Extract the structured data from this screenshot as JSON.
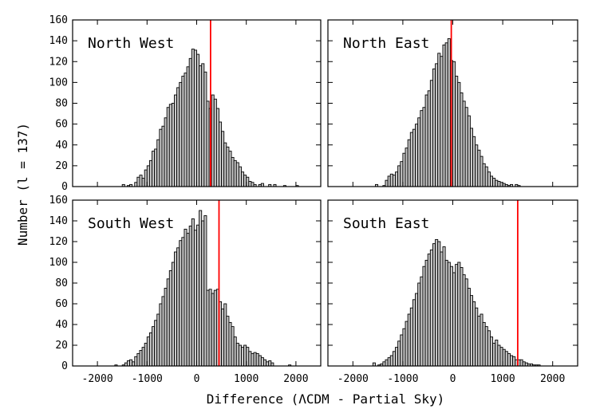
{
  "chart_data": {
    "type": "bar",
    "layout": "2x2 grid of histograms",
    "xlabel": "Difference (ΛCDM - Partial Sky)",
    "ylabel": "Number (l = 137)",
    "xlim": [
      -2500,
      2500
    ],
    "ylim": [
      0,
      160
    ],
    "xticks": [
      -2000,
      -1000,
      0,
      1000,
      2000
    ],
    "xtick_labels": [
      "-2000",
      "-1000",
      "0",
      "1000",
      "2000"
    ],
    "yticks": [
      0,
      20,
      40,
      60,
      80,
      100,
      120,
      140,
      160
    ],
    "ytick_labels": [
      "0",
      "20",
      "40",
      "60",
      "80",
      "100",
      "120",
      "140",
      "160"
    ],
    "bin_width": 50,
    "colors": {
      "bar_fill": "#c8c8c8",
      "bar_edge": "#000000",
      "marker_line": "#ff0000"
    },
    "panels": [
      {
        "title": "North West",
        "marker": 280,
        "bin_centers": [
          -1475,
          -1375,
          -1325,
          -1225,
          -1175,
          -1125,
          -1075,
          -1025,
          -975,
          -925,
          -875,
          -825,
          -775,
          -725,
          -675,
          -625,
          -575,
          -525,
          -475,
          -425,
          -375,
          -325,
          -275,
          -225,
          -175,
          -125,
          -75,
          -25,
          25,
          75,
          125,
          175,
          225,
          275,
          325,
          375,
          425,
          475,
          525,
          575,
          625,
          675,
          725,
          775,
          825,
          875,
          925,
          975,
          1025,
          1075,
          1125,
          1175,
          1275,
          1325,
          1475,
          1575,
          1775,
          2025
        ],
        "counts": [
          2,
          1,
          2,
          4,
          9,
          11,
          8,
          16,
          20,
          25,
          34,
          36,
          45,
          55,
          58,
          66,
          76,
          79,
          80,
          88,
          95,
          100,
          106,
          109,
          115,
          123,
          132,
          131,
          127,
          116,
          118,
          110,
          82,
          75,
          88,
          84,
          75,
          62,
          53,
          42,
          38,
          34,
          28,
          25,
          23,
          19,
          14,
          11,
          9,
          5,
          4,
          2,
          2,
          3,
          2,
          2,
          1,
          1
        ]
      },
      {
        "title": "North East",
        "marker": -30,
        "bin_centers": [
          -1525,
          -1375,
          -1325,
          -1275,
          -1225,
          -1175,
          -1125,
          -1075,
          -1025,
          -975,
          -925,
          -875,
          -825,
          -775,
          -725,
          -675,
          -625,
          -575,
          -525,
          -475,
          -425,
          -375,
          -325,
          -275,
          -225,
          -175,
          -125,
          -75,
          -25,
          25,
          75,
          125,
          175,
          225,
          275,
          325,
          375,
          425,
          475,
          525,
          575,
          625,
          675,
          725,
          775,
          825,
          875,
          925,
          975,
          1025,
          1075,
          1125,
          1175,
          1275,
          1325
        ],
        "counts": [
          2,
          1,
          6,
          10,
          12,
          11,
          14,
          20,
          24,
          32,
          37,
          45,
          52,
          55,
          60,
          66,
          73,
          76,
          88,
          92,
          102,
          113,
          118,
          128,
          125,
          136,
          138,
          142,
          121,
          120,
          106,
          100,
          90,
          82,
          76,
          68,
          56,
          48,
          40,
          35,
          29,
          22,
          19,
          14,
          10,
          8,
          6,
          5,
          4,
          3,
          2,
          1,
          2,
          2,
          1
        ]
      },
      {
        "title": "South West",
        "marker": 450,
        "bin_centers": [
          -1625,
          -1475,
          -1425,
          -1375,
          -1325,
          -1275,
          -1225,
          -1175,
          -1125,
          -1075,
          -1025,
          -975,
          -925,
          -875,
          -825,
          -775,
          -725,
          -675,
          -625,
          -575,
          -525,
          -475,
          -425,
          -375,
          -325,
          -275,
          -225,
          -175,
          -125,
          -75,
          -25,
          25,
          75,
          125,
          175,
          225,
          275,
          325,
          375,
          425,
          475,
          525,
          575,
          625,
          675,
          725,
          775,
          825,
          875,
          925,
          975,
          1025,
          1075,
          1125,
          1175,
          1225,
          1275,
          1325,
          1375,
          1425,
          1475,
          1525,
          1875
        ],
        "counts": [
          1,
          1,
          3,
          5,
          6,
          4,
          9,
          12,
          15,
          18,
          22,
          28,
          32,
          38,
          44,
          50,
          60,
          67,
          75,
          84,
          92,
          100,
          110,
          114,
          121,
          124,
          132,
          128,
          135,
          142,
          131,
          136,
          150,
          140,
          145,
          73,
          74,
          70,
          73,
          74,
          62,
          55,
          60,
          48,
          42,
          38,
          28,
          22,
          20,
          18,
          20,
          18,
          14,
          12,
          13,
          12,
          10,
          8,
          6,
          4,
          5,
          3,
          1
        ]
      },
      {
        "title": "South East",
        "marker": 1300,
        "bin_centers": [
          -1575,
          -1475,
          -1425,
          -1375,
          -1325,
          -1275,
          -1225,
          -1175,
          -1125,
          -1075,
          -1025,
          -975,
          -925,
          -875,
          -825,
          -775,
          -725,
          -675,
          -625,
          -575,
          -525,
          -475,
          -425,
          -375,
          -325,
          -275,
          -225,
          -175,
          -125,
          -75,
          -25,
          25,
          75,
          125,
          175,
          225,
          275,
          325,
          375,
          425,
          475,
          525,
          575,
          625,
          675,
          725,
          775,
          825,
          875,
          925,
          975,
          1025,
          1075,
          1125,
          1175,
          1225,
          1275,
          1325,
          1375,
          1425,
          1475,
          1525,
          1575,
          1625,
          1675,
          1725
        ],
        "counts": [
          3,
          1,
          2,
          4,
          6,
          8,
          10,
          14,
          18,
          24,
          30,
          36,
          43,
          50,
          56,
          64,
          70,
          80,
          86,
          96,
          102,
          108,
          112,
          118,
          122,
          120,
          110,
          115,
          102,
          100,
          96,
          90,
          98,
          100,
          95,
          88,
          84,
          75,
          68,
          62,
          56,
          48,
          50,
          42,
          38,
          34,
          28,
          22,
          25,
          20,
          18,
          16,
          14,
          12,
          10,
          9,
          6,
          6,
          6,
          4,
          3,
          2,
          2,
          1,
          1,
          1
        ]
      }
    ]
  }
}
